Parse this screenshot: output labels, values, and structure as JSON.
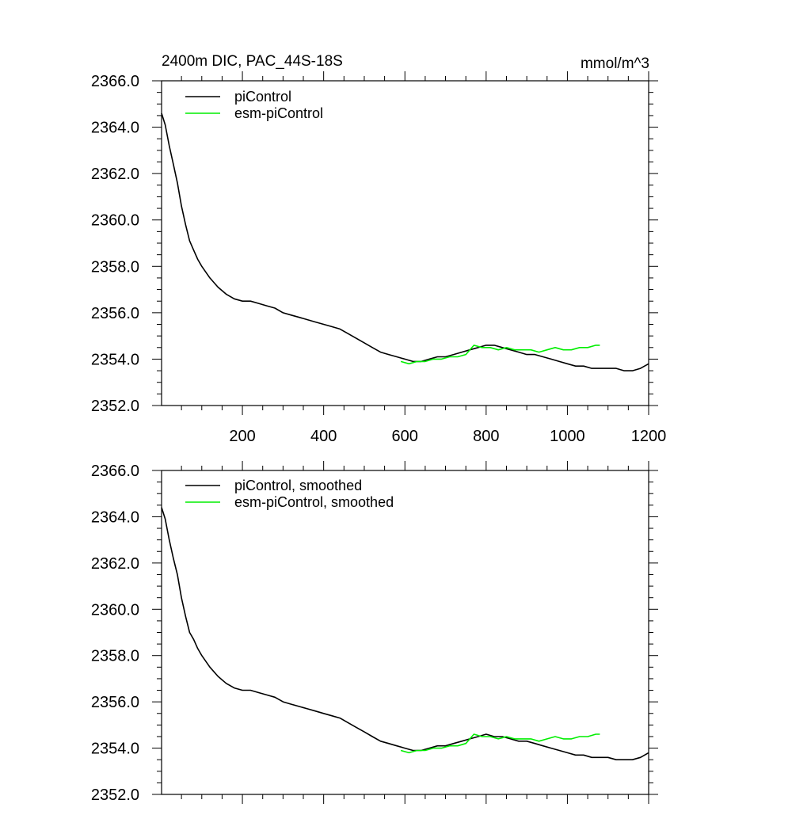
{
  "header": {
    "title": "2400m DIC, PAC_44S-18S",
    "units": "mmol/m^3"
  },
  "colors": {
    "piControl": "#000000",
    "esm_piControl": "#00ee00",
    "axis": "#000000",
    "background": "#ffffff"
  },
  "chart_data": [
    {
      "type": "line",
      "title": "2400m DIC, PAC_44S-18S",
      "ylabel_units": "mmol/m^3",
      "xlim": [
        1,
        1200
      ],
      "ylim": [
        2352.0,
        2366.0
      ],
      "x_ticks": [
        200,
        400,
        600,
        800,
        1000,
        1200
      ],
      "y_ticks": [
        2352.0,
        2354.0,
        2356.0,
        2358.0,
        2360.0,
        2362.0,
        2364.0,
        2366.0
      ],
      "x_tick_labels": [
        "200",
        "400",
        "600",
        "800",
        "1000",
        "1200"
      ],
      "y_tick_labels": [
        "2352.0",
        "2354.0",
        "2356.0",
        "2358.0",
        "2360.0",
        "2362.0",
        "2364.0",
        "2366.0"
      ],
      "legend": [
        "piControl",
        "esm-piControl"
      ],
      "series": [
        {
          "name": "piControl",
          "x": [
            1,
            10,
            20,
            30,
            40,
            50,
            60,
            70,
            80,
            90,
            100,
            120,
            140,
            160,
            180,
            200,
            220,
            240,
            260,
            280,
            300,
            320,
            340,
            360,
            380,
            400,
            420,
            440,
            460,
            480,
            500,
            520,
            540,
            560,
            580,
            600,
            620,
            640,
            660,
            680,
            700,
            720,
            740,
            760,
            780,
            800,
            820,
            840,
            860,
            880,
            900,
            920,
            940,
            960,
            980,
            1000,
            1020,
            1040,
            1060,
            1080,
            1100,
            1120,
            1140,
            1160,
            1180,
            1200
          ],
          "values": [
            2364.6,
            2364.1,
            2363.2,
            2362.4,
            2361.6,
            2360.6,
            2359.8,
            2359.1,
            2358.7,
            2358.3,
            2358.0,
            2357.5,
            2357.1,
            2356.8,
            2356.6,
            2356.5,
            2356.5,
            2356.4,
            2356.3,
            2356.2,
            2356.0,
            2355.9,
            2355.8,
            2355.7,
            2355.6,
            2355.5,
            2355.4,
            2355.3,
            2355.1,
            2354.9,
            2354.7,
            2354.5,
            2354.3,
            2354.2,
            2354.1,
            2354.0,
            2353.9,
            2353.9,
            2354.0,
            2354.1,
            2354.1,
            2354.2,
            2354.3,
            2354.4,
            2354.5,
            2354.6,
            2354.6,
            2354.5,
            2354.4,
            2354.3,
            2354.2,
            2354.2,
            2354.1,
            2354.0,
            2353.9,
            2353.8,
            2353.7,
            2353.7,
            2353.6,
            2353.6,
            2353.6,
            2353.6,
            2353.5,
            2353.5,
            2353.6,
            2353.8
          ]
        },
        {
          "name": "esm-piControl",
          "x": [
            590,
            610,
            630,
            650,
            670,
            690,
            710,
            730,
            750,
            770,
            790,
            810,
            830,
            850,
            870,
            890,
            910,
            930,
            950,
            970,
            990,
            1010,
            1030,
            1050,
            1070,
            1080
          ],
          "values": [
            2353.9,
            2353.8,
            2353.9,
            2353.9,
            2354.0,
            2354.0,
            2354.1,
            2354.1,
            2354.2,
            2354.6,
            2354.5,
            2354.5,
            2354.4,
            2354.5,
            2354.4,
            2354.4,
            2354.4,
            2354.3,
            2354.4,
            2354.5,
            2354.4,
            2354.4,
            2354.5,
            2354.5,
            2354.6,
            2354.6
          ]
        }
      ]
    },
    {
      "type": "line",
      "xlim": [
        1,
        1200
      ],
      "ylim": [
        2352.0,
        2366.0
      ],
      "y_ticks": [
        2352.0,
        2354.0,
        2356.0,
        2358.0,
        2360.0,
        2362.0,
        2364.0,
        2366.0
      ],
      "y_tick_labels": [
        "2352.0",
        "2354.0",
        "2356.0",
        "2358.0",
        "2360.0",
        "2362.0",
        "2364.0",
        "2366.0"
      ],
      "legend": [
        "piControl, smoothed",
        "esm-piControl, smoothed"
      ],
      "series": [
        {
          "name": "piControl, smoothed",
          "x": [
            1,
            10,
            20,
            30,
            40,
            50,
            60,
            70,
            80,
            90,
            100,
            120,
            140,
            160,
            180,
            200,
            220,
            240,
            260,
            280,
            300,
            320,
            340,
            360,
            380,
            400,
            420,
            440,
            460,
            480,
            500,
            520,
            540,
            560,
            580,
            600,
            620,
            640,
            660,
            680,
            700,
            720,
            740,
            760,
            780,
            800,
            820,
            840,
            860,
            880,
            900,
            920,
            940,
            960,
            980,
            1000,
            1020,
            1040,
            1060,
            1080,
            1100,
            1120,
            1140,
            1160,
            1180,
            1200
          ],
          "values": [
            2364.4,
            2363.9,
            2363.0,
            2362.2,
            2361.5,
            2360.5,
            2359.7,
            2359.0,
            2358.7,
            2358.3,
            2358.0,
            2357.5,
            2357.1,
            2356.8,
            2356.6,
            2356.5,
            2356.5,
            2356.4,
            2356.3,
            2356.2,
            2356.0,
            2355.9,
            2355.8,
            2355.7,
            2355.6,
            2355.5,
            2355.4,
            2355.3,
            2355.1,
            2354.9,
            2354.7,
            2354.5,
            2354.3,
            2354.2,
            2354.1,
            2354.0,
            2353.9,
            2353.9,
            2354.0,
            2354.1,
            2354.1,
            2354.2,
            2354.3,
            2354.4,
            2354.5,
            2354.6,
            2354.5,
            2354.5,
            2354.4,
            2354.3,
            2354.3,
            2354.2,
            2354.1,
            2354.0,
            2353.9,
            2353.8,
            2353.7,
            2353.7,
            2353.6,
            2353.6,
            2353.6,
            2353.5,
            2353.5,
            2353.5,
            2353.6,
            2353.8
          ]
        },
        {
          "name": "esm-piControl, smoothed",
          "x": [
            590,
            610,
            630,
            650,
            670,
            690,
            710,
            730,
            750,
            770,
            790,
            810,
            830,
            850,
            870,
            890,
            910,
            930,
            950,
            970,
            990,
            1010,
            1030,
            1050,
            1070,
            1080
          ],
          "values": [
            2353.9,
            2353.8,
            2353.9,
            2353.9,
            2354.0,
            2354.0,
            2354.1,
            2354.1,
            2354.2,
            2354.6,
            2354.5,
            2354.5,
            2354.4,
            2354.5,
            2354.4,
            2354.4,
            2354.4,
            2354.3,
            2354.4,
            2354.5,
            2354.4,
            2354.4,
            2354.5,
            2354.5,
            2354.6,
            2354.6
          ]
        }
      ]
    }
  ]
}
